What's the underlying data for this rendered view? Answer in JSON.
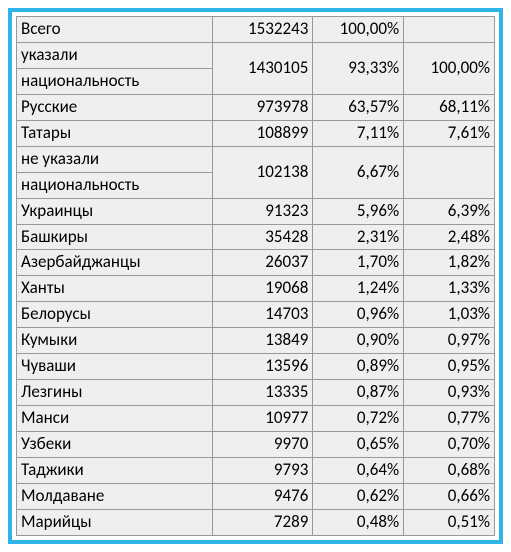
{
  "table": {
    "type": "table",
    "background_color": "#efefef",
    "border_color": "#999999",
    "frame_color": "#2eb4e8",
    "text_color": "#000000",
    "font_size_pt": 12,
    "col_align": [
      "left",
      "right",
      "right",
      "right"
    ],
    "rows": [
      {
        "label_lines": [
          "Всего"
        ],
        "count": "1532243",
        "pct1": "100,00%",
        "pct2": ""
      },
      {
        "label_lines": [
          "указали",
          "национальность"
        ],
        "count": "1430105",
        "pct1": "93,33%",
        "pct2": "100,00%"
      },
      {
        "label_lines": [
          "Русские"
        ],
        "count": "973978",
        "pct1": "63,57%",
        "pct2": "68,11%"
      },
      {
        "label_lines": [
          "Татары"
        ],
        "count": "108899",
        "pct1": "7,11%",
        "pct2": "7,61%"
      },
      {
        "label_lines": [
          "не указали",
          "национальность"
        ],
        "count": "102138",
        "pct1": "6,67%",
        "pct2": ""
      },
      {
        "label_lines": [
          "Украинцы"
        ],
        "count": "91323",
        "pct1": "5,96%",
        "pct2": "6,39%"
      },
      {
        "label_lines": [
          "Башкиры"
        ],
        "count": "35428",
        "pct1": "2,31%",
        "pct2": "2,48%"
      },
      {
        "label_lines": [
          "Азербайджанцы"
        ],
        "count": "26037",
        "pct1": "1,70%",
        "pct2": "1,82%"
      },
      {
        "label_lines": [
          "Ханты"
        ],
        "count": "19068",
        "pct1": "1,24%",
        "pct2": "1,33%"
      },
      {
        "label_lines": [
          "Белорусы"
        ],
        "count": "14703",
        "pct1": "0,96%",
        "pct2": "1,03%"
      },
      {
        "label_lines": [
          "Кумыки"
        ],
        "count": "13849",
        "pct1": "0,90%",
        "pct2": "0,97%"
      },
      {
        "label_lines": [
          "Чуваши"
        ],
        "count": "13596",
        "pct1": "0,89%",
        "pct2": "0,95%"
      },
      {
        "label_lines": [
          "Лезгины"
        ],
        "count": "13335",
        "pct1": "0,87%",
        "pct2": "0,93%"
      },
      {
        "label_lines": [
          "Манси"
        ],
        "count": "10977",
        "pct1": "0,72%",
        "pct2": "0,77%"
      },
      {
        "label_lines": [
          "Узбеки"
        ],
        "count": "9970",
        "pct1": "0,65%",
        "pct2": "0,70%"
      },
      {
        "label_lines": [
          "Таджики"
        ],
        "count": "9793",
        "pct1": "0,64%",
        "pct2": "0,68%"
      },
      {
        "label_lines": [
          "Молдаване"
        ],
        "count": "9476",
        "pct1": "0,62%",
        "pct2": "0,66%"
      },
      {
        "label_lines": [
          "Марийцы"
        ],
        "count": "7289",
        "pct1": "0,48%",
        "pct2": "0,51%"
      }
    ]
  }
}
